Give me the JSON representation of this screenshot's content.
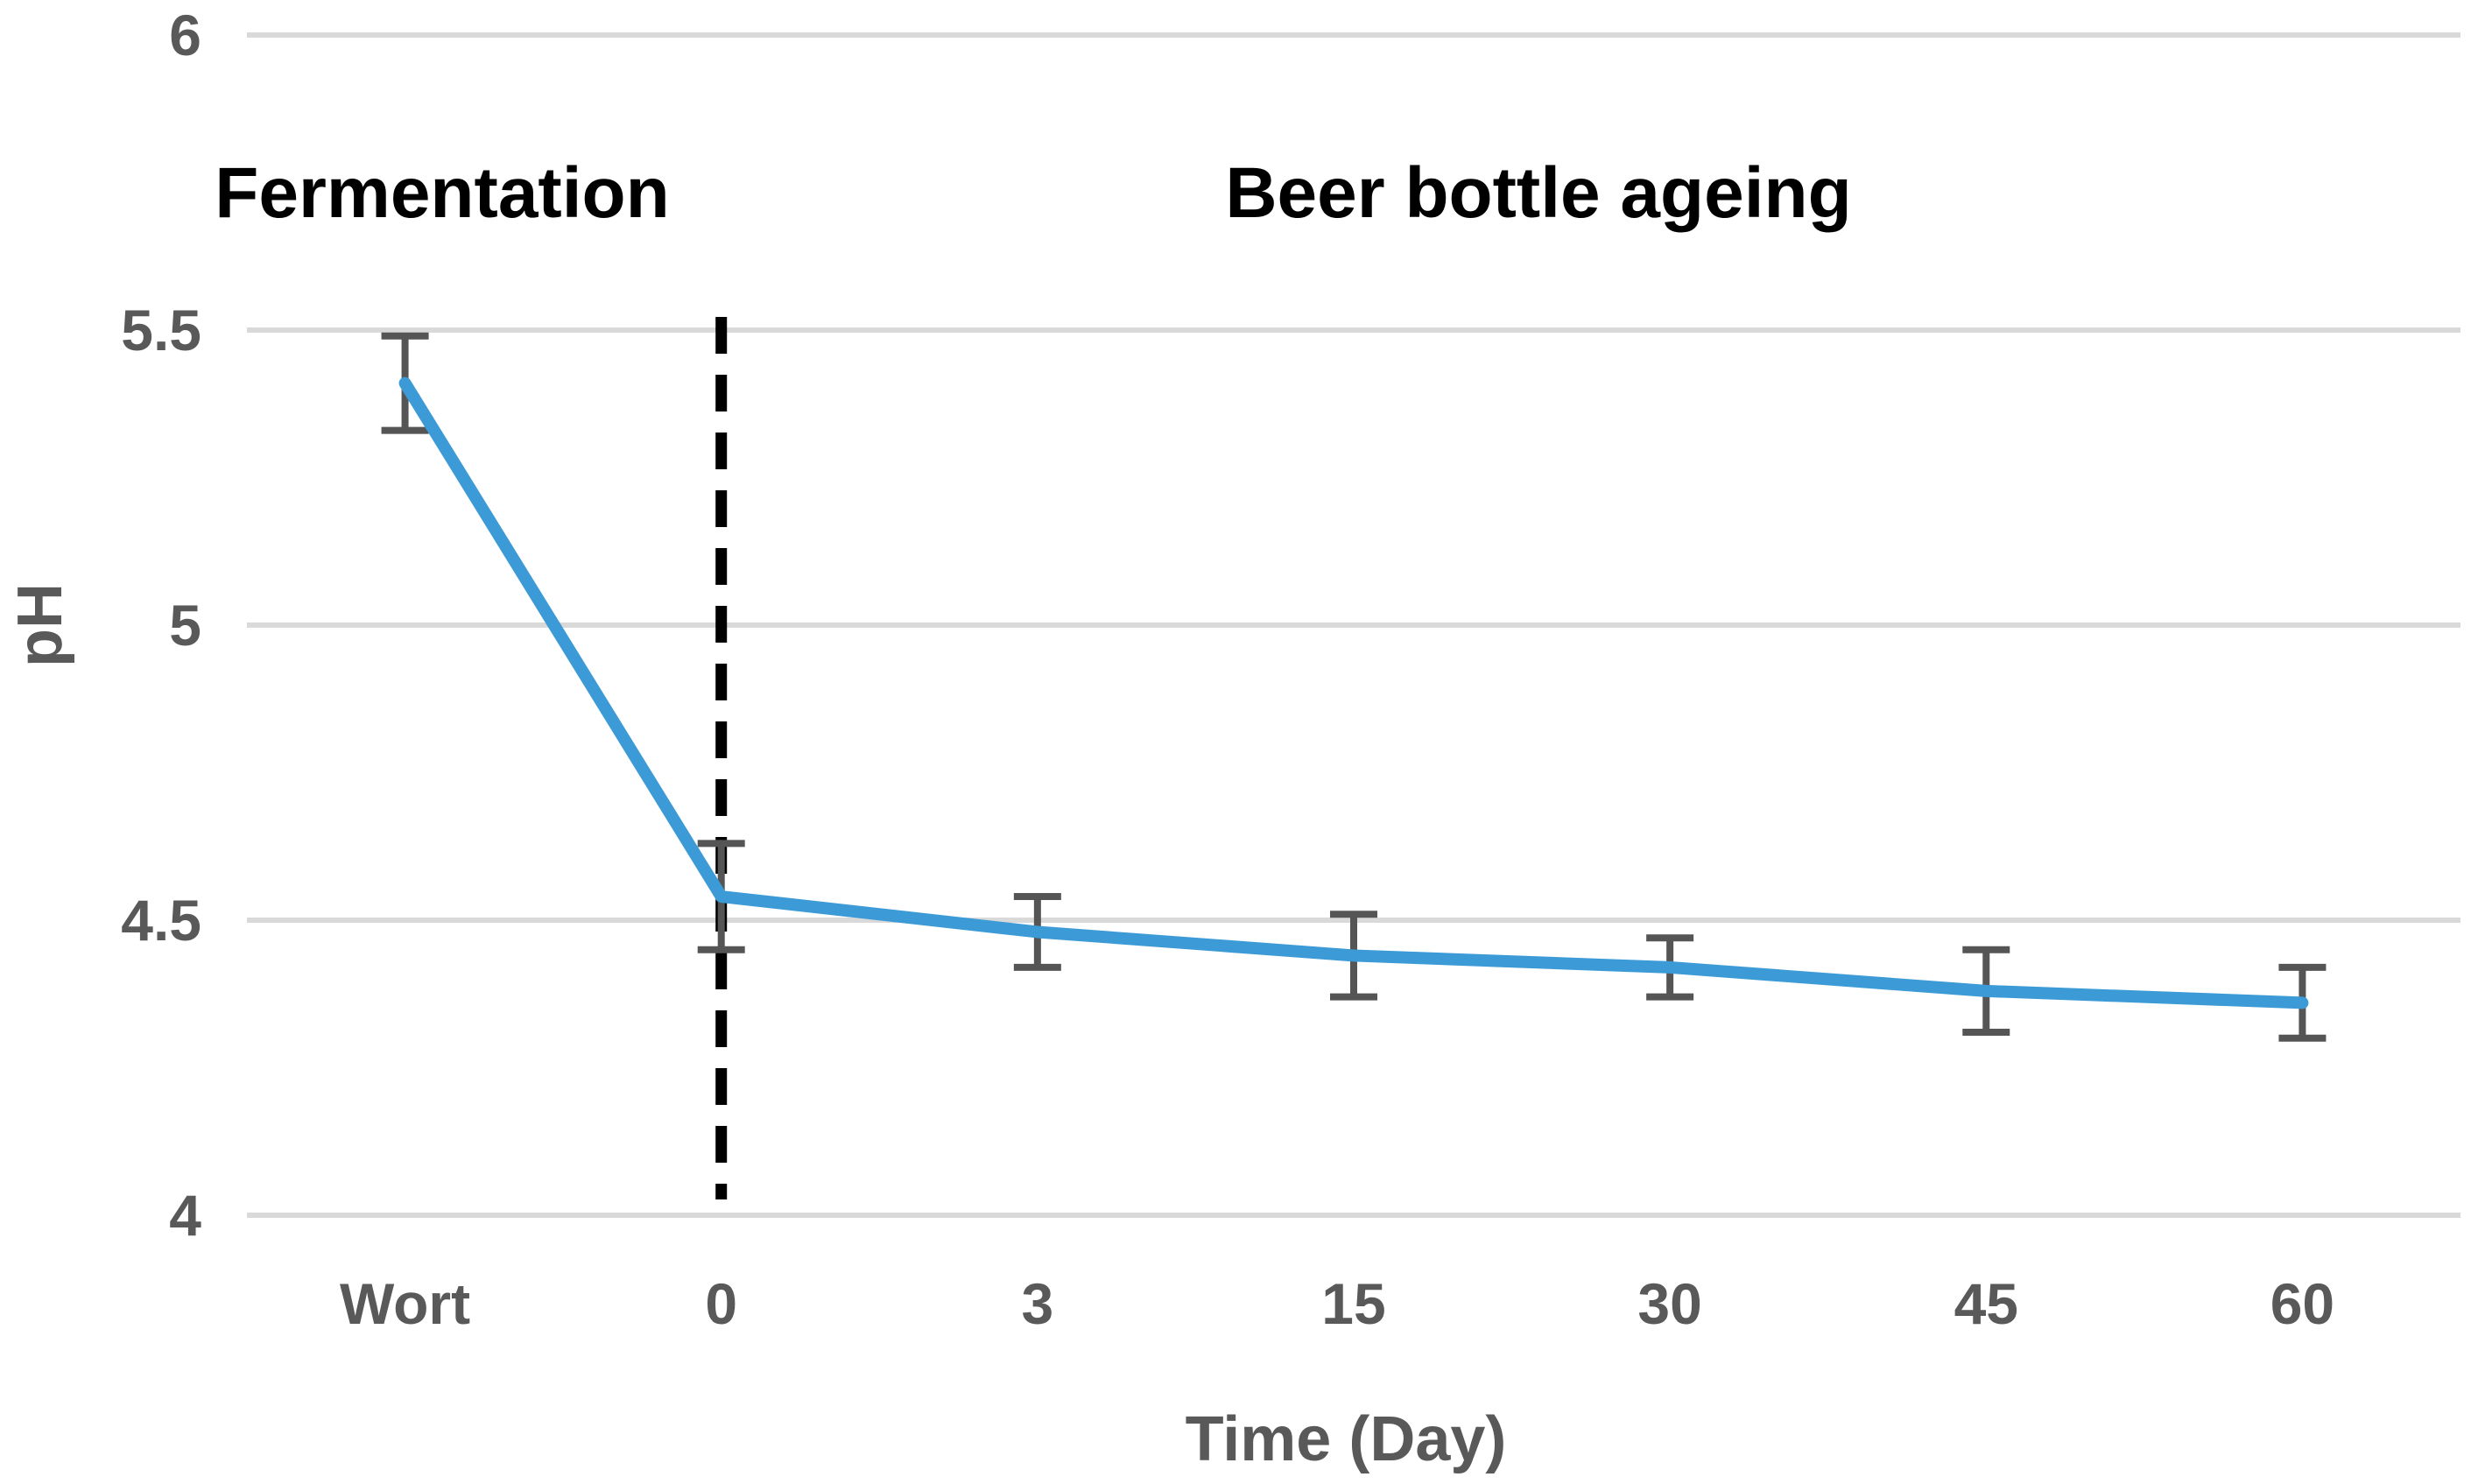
{
  "chart_data": {
    "type": "line",
    "title": "",
    "categories": [
      "Wort",
      "0",
      "3",
      "15",
      "30",
      "45",
      "60"
    ],
    "series": [
      {
        "name": "pH",
        "values": [
          5.41,
          4.54,
          4.48,
          4.44,
          4.42,
          4.38,
          4.36
        ],
        "errors": [
          0.08,
          0.09,
          0.06,
          0.07,
          0.05,
          0.07,
          0.06
        ]
      }
    ],
    "xlabel": "Time (Day)",
    "ylabel": "pH",
    "ylim": [
      4,
      6
    ],
    "yticks": [
      4,
      4.5,
      5,
      5.5,
      6
    ],
    "ytick_labels": [
      "4",
      "4.5",
      "5",
      "5.5",
      "6"
    ],
    "grid": true,
    "legend": "none",
    "annotations": [
      {
        "text": "Fermentation",
        "region": "left-of-divider"
      },
      {
        "text": "Beer bottle ageing",
        "region": "right-of-divider"
      }
    ],
    "divider": {
      "style": "dashed",
      "at_category": "0",
      "color": "#000000"
    }
  },
  "colors": {
    "line": "#3C9BD7",
    "error_bar": "#555555",
    "gridline": "#D9D9D9",
    "tick_text": "#595959",
    "annotation_text": "#000000",
    "divider": "#000000",
    "background": "#FFFFFF"
  }
}
